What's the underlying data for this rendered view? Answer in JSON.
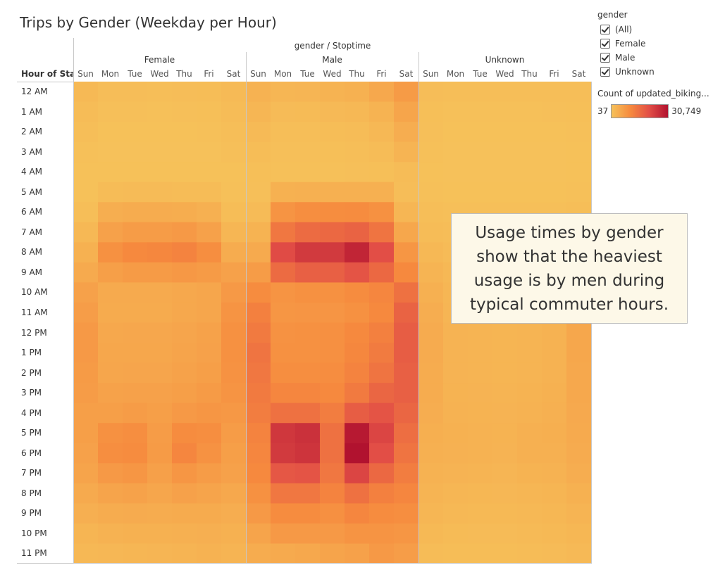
{
  "title": "Trips by Gender (Weekday per Hour)",
  "columns_caption": "gender / Stoptime",
  "row_header": "Hour of Sta..",
  "legend": {
    "filter_title": "gender",
    "filter_items": [
      "(All)",
      "Female",
      "Male",
      "Unknown"
    ],
    "color_title": "Count of updated_biking...",
    "min_label": "37",
    "max_label": "30,749"
  },
  "annotation": "Usage times by gender show that the heaviest usage is by men during typical commuter hours.",
  "chart_data": {
    "type": "heatmap",
    "groups": [
      "Female",
      "Male",
      "Unknown"
    ],
    "days": [
      "Sun",
      "Mon",
      "Tue",
      "Wed",
      "Thu",
      "Fri",
      "Sat"
    ],
    "hours": [
      "12 AM",
      "1 AM",
      "2 AM",
      "3 AM",
      "4 AM",
      "5 AM",
      "6 AM",
      "7 AM",
      "8 AM",
      "9 AM",
      "10 AM",
      "11 AM",
      "12 PM",
      "1 PM",
      "2 PM",
      "3 PM",
      "4 PM",
      "5 PM",
      "6 PM",
      "7 PM",
      "8 PM",
      "9 PM",
      "10 PM",
      "11 PM"
    ],
    "color_range": [
      37,
      30749
    ],
    "color_stops": [
      "#f6c25a",
      "#f68a3e",
      "#e24e46",
      "#b1122f"
    ],
    "values": {
      "Female": [
        [
          1700,
          900,
          900,
          800,
          900,
          1000,
          1500
        ],
        [
          1100,
          500,
          500,
          400,
          500,
          600,
          1100
        ],
        [
          700,
          300,
          300,
          300,
          300,
          400,
          800
        ],
        [
          400,
          200,
          200,
          200,
          200,
          200,
          500
        ],
        [
          300,
          300,
          300,
          300,
          300,
          300,
          300
        ],
        [
          300,
          1200,
          1300,
          1300,
          1200,
          1100,
          400
        ],
        [
          800,
          3700,
          4000,
          4000,
          3900,
          3400,
          1000
        ],
        [
          1800,
          6000,
          7000,
          7000,
          7500,
          6000,
          2200
        ],
        [
          3200,
          9000,
          10500,
          10800,
          11500,
          9500,
          4000
        ],
        [
          4500,
          6500,
          7200,
          7200,
          7800,
          7200,
          6000
        ],
        [
          6000,
          4500,
          4500,
          4500,
          4800,
          5200,
          7500
        ],
        [
          6800,
          4300,
          4300,
          4300,
          4700,
          5200,
          8500
        ],
        [
          7500,
          4800,
          4900,
          4900,
          5300,
          5800,
          9000
        ],
        [
          7500,
          5000,
          5000,
          5000,
          5500,
          6000,
          9000
        ],
        [
          7200,
          5200,
          5300,
          5300,
          5800,
          6500,
          8800
        ],
        [
          7000,
          5800,
          6000,
          6000,
          6500,
          7200,
          8500
        ],
        [
          6500,
          6500,
          7000,
          6500,
          7500,
          8000,
          7800
        ],
        [
          6500,
          9000,
          9500,
          7000,
          10000,
          9500,
          7000
        ],
        [
          6000,
          9500,
          10000,
          7200,
          11000,
          8800,
          6500
        ],
        [
          5500,
          7500,
          8000,
          6200,
          8000,
          7000,
          6000
        ],
        [
          4500,
          5500,
          5800,
          5200,
          6000,
          5500,
          4800
        ],
        [
          3500,
          4000,
          4200,
          4000,
          4300,
          4300,
          3800
        ],
        [
          2500,
          3000,
          3200,
          3200,
          3400,
          3500,
          3200
        ],
        [
          1800,
          2000,
          2200,
          2400,
          2600,
          3000,
          2600
        ]
      ],
      "Male": [
        [
          3000,
          2200,
          2400,
          2800,
          3200,
          4800,
          7200
        ],
        [
          2200,
          1300,
          1400,
          1600,
          1800,
          2800,
          5400
        ],
        [
          1500,
          800,
          800,
          1000,
          1100,
          1900,
          3800
        ],
        [
          1000,
          500,
          500,
          600,
          700,
          1100,
          2600
        ],
        [
          600,
          400,
          400,
          400,
          500,
          600,
          1200
        ],
        [
          500,
          3200,
          3400,
          3400,
          3400,
          3400,
          900
        ],
        [
          1300,
          8500,
          9500,
          9800,
          10000,
          9000,
          2300
        ],
        [
          2800,
          13500,
          15500,
          16000,
          17000,
          14000,
          5000
        ],
        [
          4500,
          21000,
          24000,
          24000,
          27500,
          20500,
          8000
        ],
        [
          7000,
          15500,
          17500,
          17500,
          19500,
          16000,
          10500
        ],
        [
          10000,
          8500,
          9000,
          9000,
          10000,
          11000,
          14500
        ],
        [
          12000,
          8000,
          8200,
          8200,
          9000,
          10500,
          17000
        ],
        [
          13000,
          8800,
          9000,
          9200,
          10500,
          12000,
          18000
        ],
        [
          14000,
          9000,
          9000,
          9200,
          10800,
          12800,
          18000
        ],
        [
          13500,
          9500,
          9500,
          9700,
          11500,
          14000,
          17500
        ],
        [
          13000,
          11000,
          11000,
          10500,
          13000,
          16500,
          17500
        ],
        [
          12500,
          14500,
          14500,
          12500,
          18000,
          19500,
          16500
        ],
        [
          11500,
          24500,
          25500,
          14500,
          29500,
          22000,
          15000
        ],
        [
          11000,
          24000,
          25000,
          14500,
          30749,
          20500,
          14000
        ],
        [
          10500,
          19000,
          19500,
          13500,
          22000,
          16000,
          12500
        ],
        [
          9000,
          13500,
          13500,
          11500,
          14500,
          12000,
          11000
        ],
        [
          7500,
          10000,
          10000,
          9200,
          11000,
          10000,
          9500
        ],
        [
          5500,
          7500,
          7500,
          7500,
          8500,
          8500,
          8000
        ],
        [
          4000,
          4500,
          4800,
          5500,
          6000,
          7500,
          6800
        ]
      ],
      "Unknown": [
        [
          900,
          700,
          700,
          700,
          700,
          800,
          800
        ],
        [
          600,
          400,
          400,
          400,
          400,
          500,
          600
        ],
        [
          500,
          300,
          300,
          300,
          300,
          300,
          400
        ],
        [
          400,
          200,
          200,
          200,
          200,
          200,
          300
        ],
        [
          300,
          200,
          200,
          200,
          200,
          200,
          300
        ],
        [
          400,
          300,
          300,
          300,
          300,
          300,
          400
        ],
        [
          700,
          500,
          500,
          500,
          500,
          500,
          700
        ],
        [
          1200,
          900,
          900,
          900,
          900,
          900,
          1200
        ],
        [
          1800,
          1300,
          1300,
          1300,
          1300,
          1300,
          1800
        ],
        [
          2600,
          1800,
          1800,
          1800,
          1800,
          1800,
          2600
        ],
        [
          3400,
          2200,
          2200,
          2200,
          2200,
          2300,
          3800
        ],
        [
          3800,
          2400,
          2400,
          2300,
          2300,
          2600,
          4500
        ],
        [
          4200,
          2700,
          2600,
          2500,
          2600,
          2900,
          5000
        ],
        [
          4200,
          2700,
          2600,
          2500,
          2600,
          3000,
          5000
        ],
        [
          4000,
          2700,
          2600,
          2500,
          2600,
          3000,
          4800
        ],
        [
          4000,
          2800,
          2700,
          2600,
          2800,
          3200,
          4800
        ],
        [
          3800,
          2900,
          2800,
          2700,
          3000,
          3400,
          4600
        ],
        [
          3600,
          3200,
          3000,
          2800,
          3400,
          3600,
          4400
        ],
        [
          3400,
          3100,
          3000,
          2700,
          3300,
          3400,
          4200
        ],
        [
          3000,
          2700,
          2600,
          2400,
          2800,
          3000,
          3800
        ],
        [
          2600,
          2200,
          2100,
          2000,
          2300,
          2500,
          3200
        ],
        [
          2200,
          1800,
          1700,
          1700,
          1900,
          2100,
          2600
        ],
        [
          1700,
          1400,
          1300,
          1300,
          1500,
          1700,
          2100
        ],
        [
          1200,
          1000,
          1000,
          1000,
          1100,
          1300,
          1600
        ]
      ]
    }
  }
}
